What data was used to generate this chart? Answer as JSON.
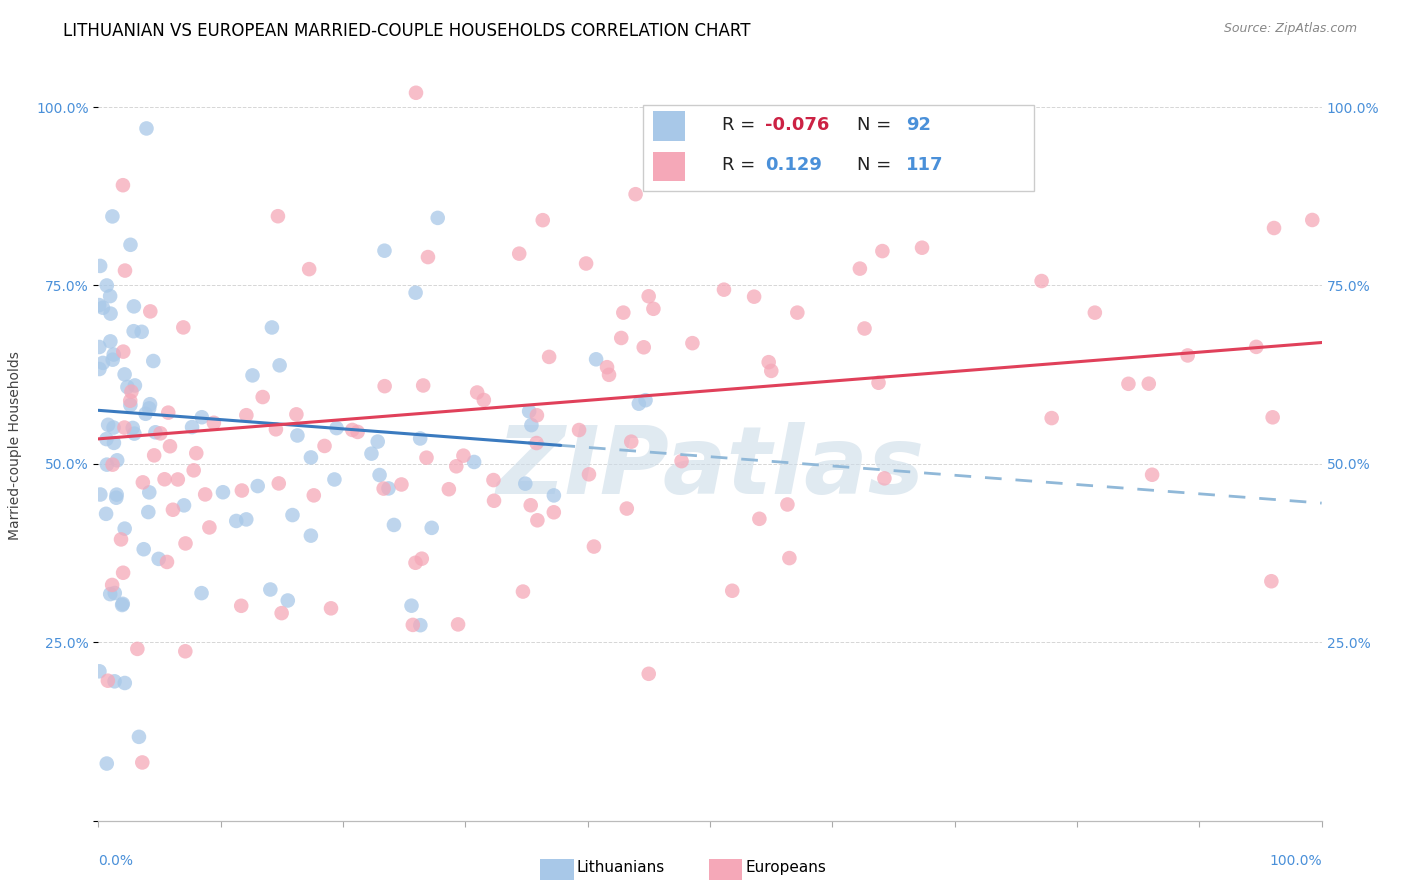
{
  "title": "LITHUANIAN VS EUROPEAN MARRIED-COUPLE HOUSEHOLDS CORRELATION CHART",
  "source": "Source: ZipAtlas.com",
  "ylabel": "Married-couple Households",
  "legend_R_blue": "-0.076",
  "legend_N_blue": "92",
  "legend_R_pink": "0.129",
  "legend_N_pink": "117",
  "blue_color": "#a8c8e8",
  "pink_color": "#f5a8b8",
  "blue_line_color": "#3a7abf",
  "pink_line_color": "#e0405a",
  "dashed_line_color": "#90b8d8",
  "watermark_text": "ZIPatlas",
  "watermark_color": "#ccdce8",
  "xmin": 0.0,
  "xmax": 1.0,
  "ymin": 0.0,
  "ymax": 1.05,
  "blue_intercept": 0.575,
  "blue_slope": -0.13,
  "pink_intercept": 0.535,
  "pink_slope": 0.135,
  "title_fontsize": 12,
  "axis_label_fontsize": 10,
  "tick_fontsize": 10,
  "legend_fontsize": 13
}
